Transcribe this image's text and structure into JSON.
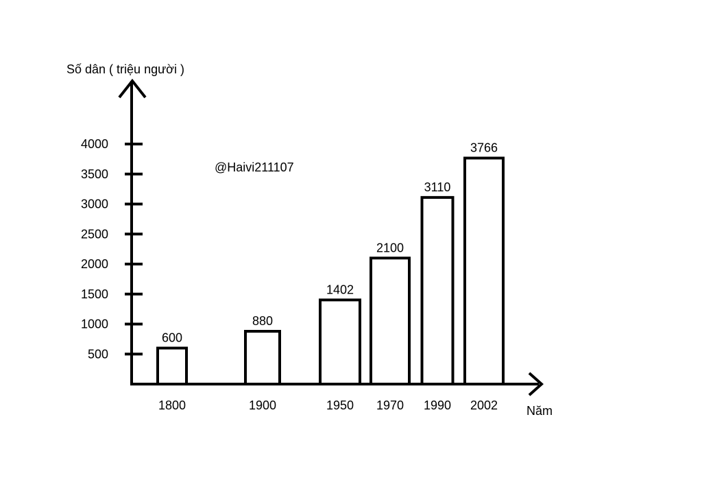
{
  "chart_data": {
    "type": "bar",
    "title": "",
    "ylabel": "Số dân ( triệu người )",
    "xlabel": "Năm",
    "categories": [
      "1800",
      "1900",
      "1950",
      "1970",
      "1990",
      "2002"
    ],
    "values": [
      600,
      880,
      1402,
      2100,
      3110,
      3766
    ],
    "y_ticks": [
      500,
      1000,
      1500,
      2000,
      2500,
      3000,
      3500,
      4000
    ],
    "ylim": [
      0,
      4400
    ],
    "grid": false,
    "legend": "none",
    "bar_fill": "#ffffff",
    "stroke_color": "#000000"
  },
  "watermark": "@Haivi211107"
}
